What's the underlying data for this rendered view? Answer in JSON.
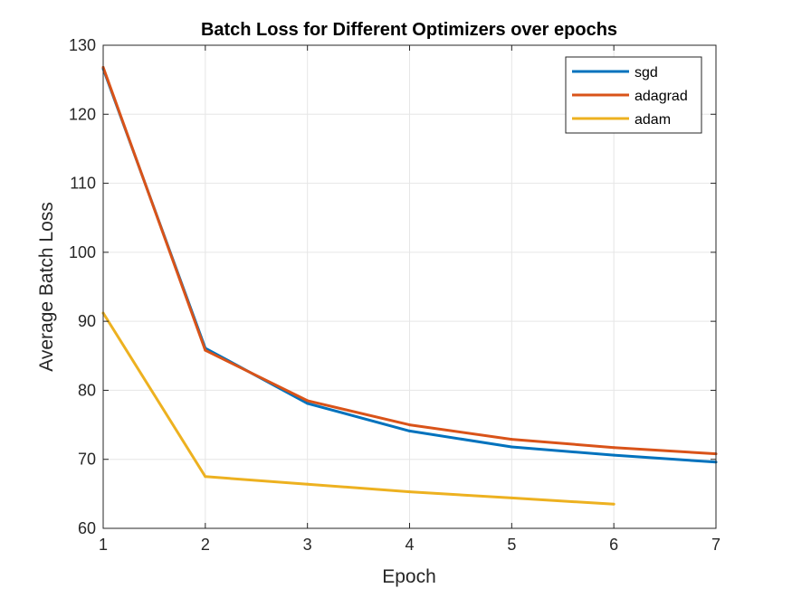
{
  "chart_data": {
    "type": "line",
    "title": "Batch Loss for Different Optimizers over epochs",
    "xlabel": "Epoch",
    "ylabel": "Average Batch Loss",
    "xlim": [
      1,
      7
    ],
    "ylim": [
      60,
      130
    ],
    "xticks": [
      1,
      2,
      3,
      4,
      5,
      6,
      7
    ],
    "yticks": [
      60,
      70,
      80,
      90,
      100,
      110,
      120,
      130
    ],
    "grid": true,
    "legend_position": "top-right",
    "series": [
      {
        "name": "sgd",
        "color": "#0072BD",
        "x": [
          1,
          2,
          3,
          4,
          5,
          6,
          7
        ],
        "y": [
          126.6,
          86.1,
          78.1,
          74.1,
          71.8,
          70.6,
          69.6
        ]
      },
      {
        "name": "adagrad",
        "color": "#D95319",
        "x": [
          1,
          2,
          3,
          4,
          5,
          6,
          7
        ],
        "y": [
          126.8,
          85.8,
          78.5,
          75.0,
          72.9,
          71.7,
          70.8
        ]
      },
      {
        "name": "adam",
        "color": "#EDB120",
        "x": [
          1,
          2,
          3,
          4,
          5,
          6
        ],
        "y": [
          91.2,
          67.5,
          66.4,
          65.3,
          64.4,
          63.5
        ]
      }
    ]
  }
}
